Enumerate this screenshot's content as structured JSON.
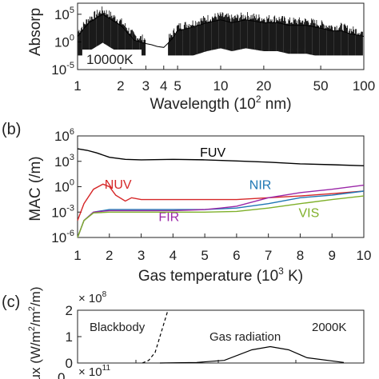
{
  "panels": {
    "a": {
      "ylabel": "Absorp",
      "temperature_label": "10000K",
      "xlabel_prefix": "Wavelength (10",
      "xlabel_sup": "2",
      "xlabel_suffix": " nm)",
      "xticks": [
        "1",
        "2",
        "3",
        "4",
        "5",
        "10",
        "20",
        "50",
        "100"
      ],
      "yticks": [
        {
          "base": "10",
          "exp": "5"
        },
        {
          "base": "10",
          "exp": "0"
        },
        {
          "base": "10",
          "exp": "-5"
        }
      ]
    },
    "b": {
      "panel_label": "(b)",
      "ylabel": "MAC (/m)",
      "xlabel_prefix": "Gas temperature (10",
      "xlabel_sup": "3",
      "xlabel_suffix": " K)",
      "xticks": [
        "1",
        "2",
        "3",
        "4",
        "5",
        "6",
        "7",
        "8",
        "9",
        "10"
      ],
      "yticks": [
        {
          "base": "10",
          "exp": "6"
        },
        {
          "base": "10",
          "exp": "3"
        },
        {
          "base": "10",
          "exp": "0"
        },
        {
          "base": "10",
          "exp": "-3"
        },
        {
          "base": "10",
          "exp": "-6"
        }
      ]
    },
    "c": {
      "panel_label": "(c)",
      "ylabel": "ux (W/m",
      "ylabel_sup1": "2",
      "ylabel_mid": "/m",
      "ylabel_sup2": "2",
      "ylabel_end": "/m)",
      "multiplier_top": {
        "base": "× 10",
        "exp": "8"
      },
      "multiplier_bottom": {
        "base": "× 10",
        "exp": "11"
      },
      "yticks": [
        "2",
        "1",
        "0"
      ],
      "partial_tick": "0",
      "annotation_blackbody": "Blackbody",
      "annotation_gas": "Gas radiation",
      "temperature_label": "2000K"
    }
  },
  "colors": {
    "FUV": "#000000",
    "NUV": "#d62728",
    "NIR": "#1f77b4",
    "FIR": "#9b27a8",
    "VIS": "#7fb02a"
  },
  "chart_data": [
    {
      "type": "line",
      "panel": "a",
      "xscale": "log",
      "yscale": "log",
      "xlim": [
        1,
        100
      ],
      "ylim": [
        1e-05,
        10000000.0
      ],
      "series": [
        {
          "name": "",
          "x": [
            1,
            1.2,
            1.5,
            2,
            2.5,
            3,
            3.3,
            3.6,
            4,
            4.5,
            5,
            6,
            7,
            8,
            10,
            12,
            15,
            20,
            25,
            30,
            40,
            50,
            60,
            70,
            80,
            100
          ],
          "y": [
            10,
            3000,
            100000,
            1000,
            2,
            0.5,
            0.3,
            0.15,
            0.1,
            2,
            100,
            300,
            1000,
            3000,
            10000,
            3000,
            10000,
            3000,
            3000,
            1000,
            1000,
            300,
            100,
            100,
            30,
            10
          ]
        }
      ]
    },
    {
      "type": "line",
      "panel": "b",
      "xscale": "linear",
      "yscale": "log",
      "xlim": [
        1,
        10
      ],
      "ylim": [
        1e-06,
        1000000.0
      ],
      "series": [
        {
          "name": "FUV",
          "x": [
            1,
            1.3,
            1.6,
            2,
            2.5,
            3,
            4,
            5,
            6,
            7,
            8,
            9,
            10
          ],
          "y": [
            30000,
            20000,
            10000,
            3000,
            1700,
            1500,
            1700,
            1500,
            1100,
            800,
            500,
            400,
            300
          ]
        },
        {
          "name": "NUV",
          "x": [
            1,
            1.2,
            1.5,
            1.8,
            2,
            2.2,
            2.5,
            2.7,
            3,
            4,
            5,
            6,
            7,
            8,
            9,
            10
          ],
          "y": [
            0.0001,
            0.01,
            0.5,
            2,
            1,
            0.1,
            0.02,
            0.05,
            0.03,
            0.03,
            0.03,
            0.03,
            0.05,
            0.08,
            0.15,
            0.3
          ]
        },
        {
          "name": "NIR",
          "x": [
            1,
            1.2,
            1.5,
            2,
            2.5,
            3,
            4,
            5,
            6,
            7,
            8,
            9,
            10
          ],
          "y": [
            1e-06,
            0.0001,
            0.001,
            0.002,
            0.002,
            0.002,
            0.002,
            0.002,
            0.003,
            0.01,
            0.05,
            0.1,
            0.3
          ]
        },
        {
          "name": "FIR",
          "x": [
            1,
            1.2,
            1.5,
            2,
            2.5,
            3,
            4,
            5,
            5.5,
            6,
            7,
            8,
            9,
            10
          ],
          "y": [
            1e-06,
            0.0001,
            0.001,
            0.0015,
            0.0015,
            0.0015,
            0.0015,
            0.002,
            0.003,
            0.005,
            0.05,
            0.2,
            0.5,
            1.5
          ]
        },
        {
          "name": "VIS",
          "x": [
            1,
            1.2,
            1.5,
            2,
            2.5,
            3,
            4,
            5,
            6,
            7,
            8,
            9,
            10
          ],
          "y": [
            1e-06,
            0.0001,
            0.0008,
            0.001,
            0.001,
            0.001,
            0.001,
            0.001,
            0.0012,
            0.003,
            0.01,
            0.03,
            0.08
          ]
        }
      ]
    },
    {
      "type": "line",
      "panel": "c",
      "yunit_multiplier": 100000000.0,
      "ylim": [
        0,
        2
      ],
      "series": [
        {
          "name": "Blackbody",
          "x": [
            0.0,
            0.25,
            0.5,
            0.75,
            1.0
          ],
          "y": [
            0.0,
            0.1,
            0.4,
            1.2,
            2.0
          ]
        },
        {
          "name": "Gas radiation",
          "x": [
            0.0,
            0.2,
            0.35,
            0.5,
            0.6,
            0.7,
            0.8,
            1.0
          ],
          "y": [
            0.0,
            0.02,
            0.1,
            0.5,
            0.62,
            0.5,
            0.2,
            0.02
          ]
        }
      ]
    }
  ]
}
